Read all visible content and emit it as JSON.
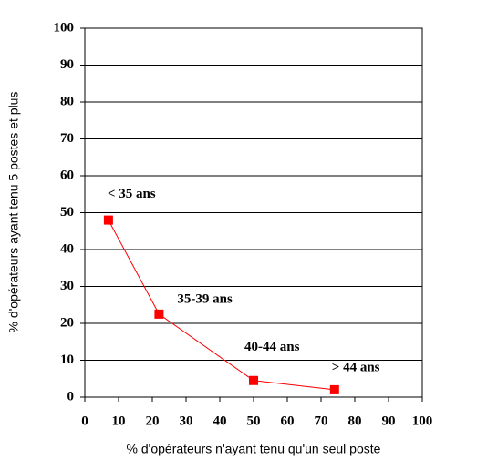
{
  "chart_data": {
    "type": "scatter",
    "x_label": "% d'opérateurs n'ayant tenu qu'un seul poste",
    "y_label": "% d'opérateurs ayant tenu 5 postes et plus",
    "series": [
      {
        "name": null,
        "color": "#ff0000",
        "x": [
          7,
          22,
          50,
          74
        ],
        "values": [
          48,
          22.5,
          4.5,
          2
        ],
        "point_labels": [
          "< 35 ans",
          "35-39 ans",
          "40-44 ans",
          "> 44 ans"
        ]
      }
    ],
    "xlim": [
      0,
      100
    ],
    "xticks": [
      0,
      10,
      20,
      30,
      40,
      50,
      60,
      70,
      80,
      90,
      100
    ],
    "ylim": [
      0,
      100
    ],
    "yticks": [
      0,
      10,
      20,
      30,
      40,
      50,
      60,
      70,
      80,
      90,
      100
    ],
    "grid": true,
    "connect_points": true
  }
}
